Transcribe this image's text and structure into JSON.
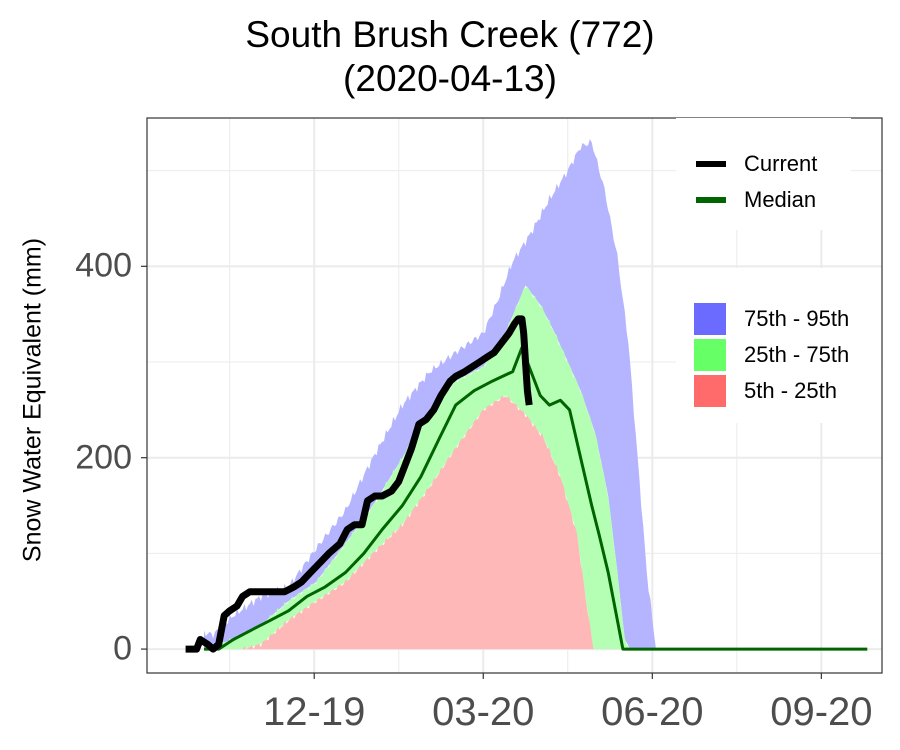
{
  "chart_data": {
    "type": "area",
    "title": "South Brush Creek (772)",
    "subtitle": "(2020-04-13)",
    "ylabel": "Snow Water Equivalent (mm)",
    "xlabel": "",
    "ylim": [
      -25,
      555
    ],
    "xlim": [
      "2019-09-19",
      "2020-10-23"
    ],
    "y_ticks": [
      0,
      200,
      400
    ],
    "x_ticks": [
      {
        "label": "12-19",
        "date": "2019-12-19"
      },
      {
        "label": "03-20",
        "date": "2020-03-20"
      },
      {
        "label": "06-20",
        "date": "2020-06-20"
      },
      {
        "label": "09-20",
        "date": "2020-09-20"
      }
    ],
    "grid": true,
    "legend_lines": [
      {
        "name": "Current",
        "color": "#000000"
      },
      {
        "name": "Median",
        "color": "#006400"
      }
    ],
    "legend_bands": [
      {
        "name": "75th - 95th",
        "color": "#6b6bff"
      },
      {
        "name": "25th - 75th",
        "color": "#66ff66"
      },
      {
        "name": "5th - 25th",
        "color": "#ff6b6b"
      }
    ],
    "bands": {
      "p95": [
        [
          "2019-10-10",
          0
        ],
        [
          "2019-10-14",
          20
        ],
        [
          "2019-10-25",
          15
        ],
        [
          "2019-11-05",
          35
        ],
        [
          "2019-11-20",
          55
        ],
        [
          "2019-12-05",
          65
        ],
        [
          "2019-12-20",
          105
        ],
        [
          "2020-01-05",
          145
        ],
        [
          "2020-01-20",
          200
        ],
        [
          "2020-02-05",
          255
        ],
        [
          "2020-02-20",
          290
        ],
        [
          "2020-03-05",
          310
        ],
        [
          "2020-03-20",
          330
        ],
        [
          "2020-03-28",
          365
        ],
        [
          "2020-04-05",
          405
        ],
        [
          "2020-04-15",
          435
        ],
        [
          "2020-04-25",
          470
        ],
        [
          "2020-05-05",
          500
        ],
        [
          "2020-05-12",
          525
        ],
        [
          "2020-05-18",
          530
        ],
        [
          "2020-05-25",
          480
        ],
        [
          "2020-06-01",
          410
        ],
        [
          "2020-06-07",
          320
        ],
        [
          "2020-06-12",
          200
        ],
        [
          "2020-06-17",
          80
        ],
        [
          "2020-06-22",
          0
        ],
        [
          "2020-10-15",
          0
        ]
      ],
      "p75": [
        [
          "2019-10-20",
          0
        ],
        [
          "2019-11-05",
          10
        ],
        [
          "2019-11-20",
          25
        ],
        [
          "2019-12-05",
          50
        ],
        [
          "2019-12-20",
          70
        ],
        [
          "2020-01-05",
          110
        ],
        [
          "2020-01-20",
          150
        ],
        [
          "2020-02-05",
          200
        ],
        [
          "2020-02-20",
          250
        ],
        [
          "2020-03-05",
          280
        ],
        [
          "2020-03-20",
          295
        ],
        [
          "2020-04-01",
          330
        ],
        [
          "2020-04-12",
          380
        ],
        [
          "2020-04-20",
          360
        ],
        [
          "2020-04-28",
          330
        ],
        [
          "2020-05-05",
          300
        ],
        [
          "2020-05-12",
          270
        ],
        [
          "2020-05-20",
          225
        ],
        [
          "2020-05-27",
          160
        ],
        [
          "2020-06-01",
          80
        ],
        [
          "2020-06-05",
          10
        ],
        [
          "2020-06-08",
          0
        ],
        [
          "2020-10-15",
          0
        ]
      ],
      "p25": [
        [
          "2019-10-20",
          0
        ],
        [
          "2019-11-10",
          0
        ],
        [
          "2019-11-20",
          5
        ],
        [
          "2019-12-05",
          30
        ],
        [
          "2019-12-20",
          50
        ],
        [
          "2020-01-05",
          70
        ],
        [
          "2020-01-20",
          100
        ],
        [
          "2020-02-05",
          130
        ],
        [
          "2020-02-20",
          170
        ],
        [
          "2020-03-05",
          210
        ],
        [
          "2020-03-20",
          250
        ],
        [
          "2020-04-01",
          265
        ],
        [
          "2020-04-12",
          245
        ],
        [
          "2020-04-22",
          220
        ],
        [
          "2020-05-01",
          180
        ],
        [
          "2020-05-10",
          120
        ],
        [
          "2020-05-15",
          50
        ],
        [
          "2020-05-19",
          0
        ],
        [
          "2020-10-15",
          0
        ]
      ],
      "p05": [
        [
          "2019-10-20",
          0
        ],
        [
          "2020-10-15",
          0
        ]
      ]
    },
    "series": [
      {
        "name": "Current",
        "color": "#000000",
        "points": [
          [
            "2019-10-10",
            0
          ],
          [
            "2019-10-16",
            0
          ],
          [
            "2019-10-18",
            10
          ],
          [
            "2019-10-22",
            5
          ],
          [
            "2019-10-25",
            0
          ],
          [
            "2019-10-28",
            5
          ],
          [
            "2019-10-31",
            35
          ],
          [
            "2019-11-03",
            40
          ],
          [
            "2019-11-07",
            45
          ],
          [
            "2019-11-10",
            55
          ],
          [
            "2019-11-14",
            60
          ],
          [
            "2019-11-28",
            60
          ],
          [
            "2019-12-03",
            60
          ],
          [
            "2019-12-08",
            65
          ],
          [
            "2019-12-12",
            70
          ],
          [
            "2019-12-17",
            80
          ],
          [
            "2019-12-22",
            90
          ],
          [
            "2019-12-27",
            100
          ],
          [
            "2020-01-02",
            110
          ],
          [
            "2020-01-06",
            125
          ],
          [
            "2020-01-10",
            130
          ],
          [
            "2020-01-14",
            130
          ],
          [
            "2020-01-17",
            155
          ],
          [
            "2020-01-21",
            160
          ],
          [
            "2020-01-25",
            160
          ],
          [
            "2020-01-30",
            165
          ],
          [
            "2020-02-03",
            175
          ],
          [
            "2020-02-07",
            195
          ],
          [
            "2020-02-10",
            210
          ],
          [
            "2020-02-14",
            235
          ],
          [
            "2020-02-18",
            240
          ],
          [
            "2020-02-22",
            250
          ],
          [
            "2020-02-26",
            265
          ],
          [
            "2020-03-02",
            280
          ],
          [
            "2020-03-05",
            285
          ],
          [
            "2020-03-10",
            290
          ],
          [
            "2020-03-14",
            295
          ],
          [
            "2020-03-18",
            300
          ],
          [
            "2020-03-22",
            305
          ],
          [
            "2020-03-26",
            310
          ],
          [
            "2020-03-30",
            320
          ],
          [
            "2020-04-03",
            330
          ],
          [
            "2020-04-06",
            340
          ],
          [
            "2020-04-08",
            345
          ],
          [
            "2020-04-10",
            345
          ],
          [
            "2020-04-11",
            330
          ],
          [
            "2020-04-12",
            300
          ],
          [
            "2020-04-13",
            270
          ],
          [
            "2020-04-14",
            255
          ]
        ]
      },
      {
        "name": "Median",
        "color": "#006400",
        "points": [
          [
            "2019-10-20",
            0
          ],
          [
            "2019-10-28",
            0
          ],
          [
            "2019-11-05",
            10
          ],
          [
            "2019-11-15",
            20
          ],
          [
            "2019-11-25",
            30
          ],
          [
            "2019-12-05",
            40
          ],
          [
            "2019-12-15",
            55
          ],
          [
            "2019-12-25",
            65
          ],
          [
            "2020-01-05",
            80
          ],
          [
            "2020-01-15",
            100
          ],
          [
            "2020-01-25",
            125
          ],
          [
            "2020-02-05",
            150
          ],
          [
            "2020-02-15",
            180
          ],
          [
            "2020-02-25",
            220
          ],
          [
            "2020-03-05",
            255
          ],
          [
            "2020-03-15",
            270
          ],
          [
            "2020-03-25",
            280
          ],
          [
            "2020-04-05",
            290
          ],
          [
            "2020-04-10",
            315
          ],
          [
            "2020-04-15",
            290
          ],
          [
            "2020-04-20",
            265
          ],
          [
            "2020-04-25",
            255
          ],
          [
            "2020-05-01",
            260
          ],
          [
            "2020-05-06",
            250
          ],
          [
            "2020-05-12",
            200
          ],
          [
            "2020-05-18",
            150
          ],
          [
            "2020-05-22",
            120
          ],
          [
            "2020-05-27",
            80
          ],
          [
            "2020-06-01",
            30
          ],
          [
            "2020-06-04",
            0
          ],
          [
            "2020-10-15",
            0
          ]
        ]
      }
    ]
  }
}
